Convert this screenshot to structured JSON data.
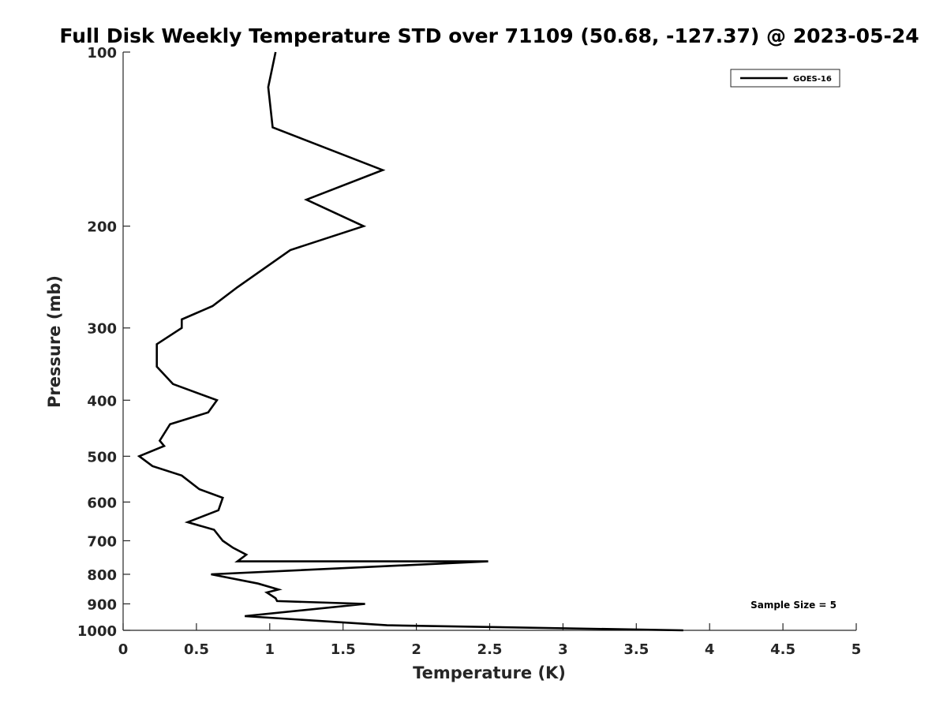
{
  "chart_data": {
    "type": "line",
    "title": "Full Disk Weekly Temperature STD over 71109 (50.68, -127.37) @ 2023-05-24",
    "xlabel": "Temperature (K)",
    "ylabel": "Pressure (mb)",
    "xlim": [
      0,
      5
    ],
    "ylim": [
      100,
      1000
    ],
    "y_scale": "log",
    "y_reversed": true,
    "x_ticks": [
      "0",
      "0.5",
      "1",
      "1.5",
      "2",
      "2.5",
      "3",
      "3.5",
      "4",
      "4.5",
      "5"
    ],
    "y_ticks": [
      "100",
      "200",
      "300",
      "400",
      "500",
      "600",
      "700",
      "800",
      "900",
      "1000"
    ],
    "grid": false,
    "legend_position": "top-right",
    "series": [
      {
        "name": "GOES-16",
        "color": "#000000",
        "x": [
          1.04,
          0.99,
          1.02,
          1.77,
          1.25,
          1.64,
          1.14,
          0.78,
          0.61,
          0.4,
          0.4,
          0.23,
          0.23,
          0.23,
          0.34,
          0.64,
          0.58,
          0.32,
          0.25,
          0.28,
          0.11,
          0.2,
          0.4,
          0.52,
          0.68,
          0.65,
          0.44,
          0.62,
          0.68,
          0.75,
          0.84,
          0.78,
          2.49,
          0.6,
          0.92,
          1.06,
          0.98,
          1.04,
          1.05,
          1.65,
          0.83,
          1.8,
          3.82
        ],
        "y": [
          100,
          115,
          135,
          160,
          180,
          200,
          220,
          255,
          275,
          290,
          300,
          320,
          335,
          350,
          375,
          400,
          420,
          440,
          470,
          480,
          500,
          520,
          540,
          570,
          590,
          620,
          650,
          670,
          700,
          720,
          740,
          760,
          760,
          800,
          830,
          850,
          860,
          880,
          890,
          900,
          945,
          980,
          1000
        ]
      }
    ],
    "annotations": [
      "Sample Size = 5"
    ]
  }
}
